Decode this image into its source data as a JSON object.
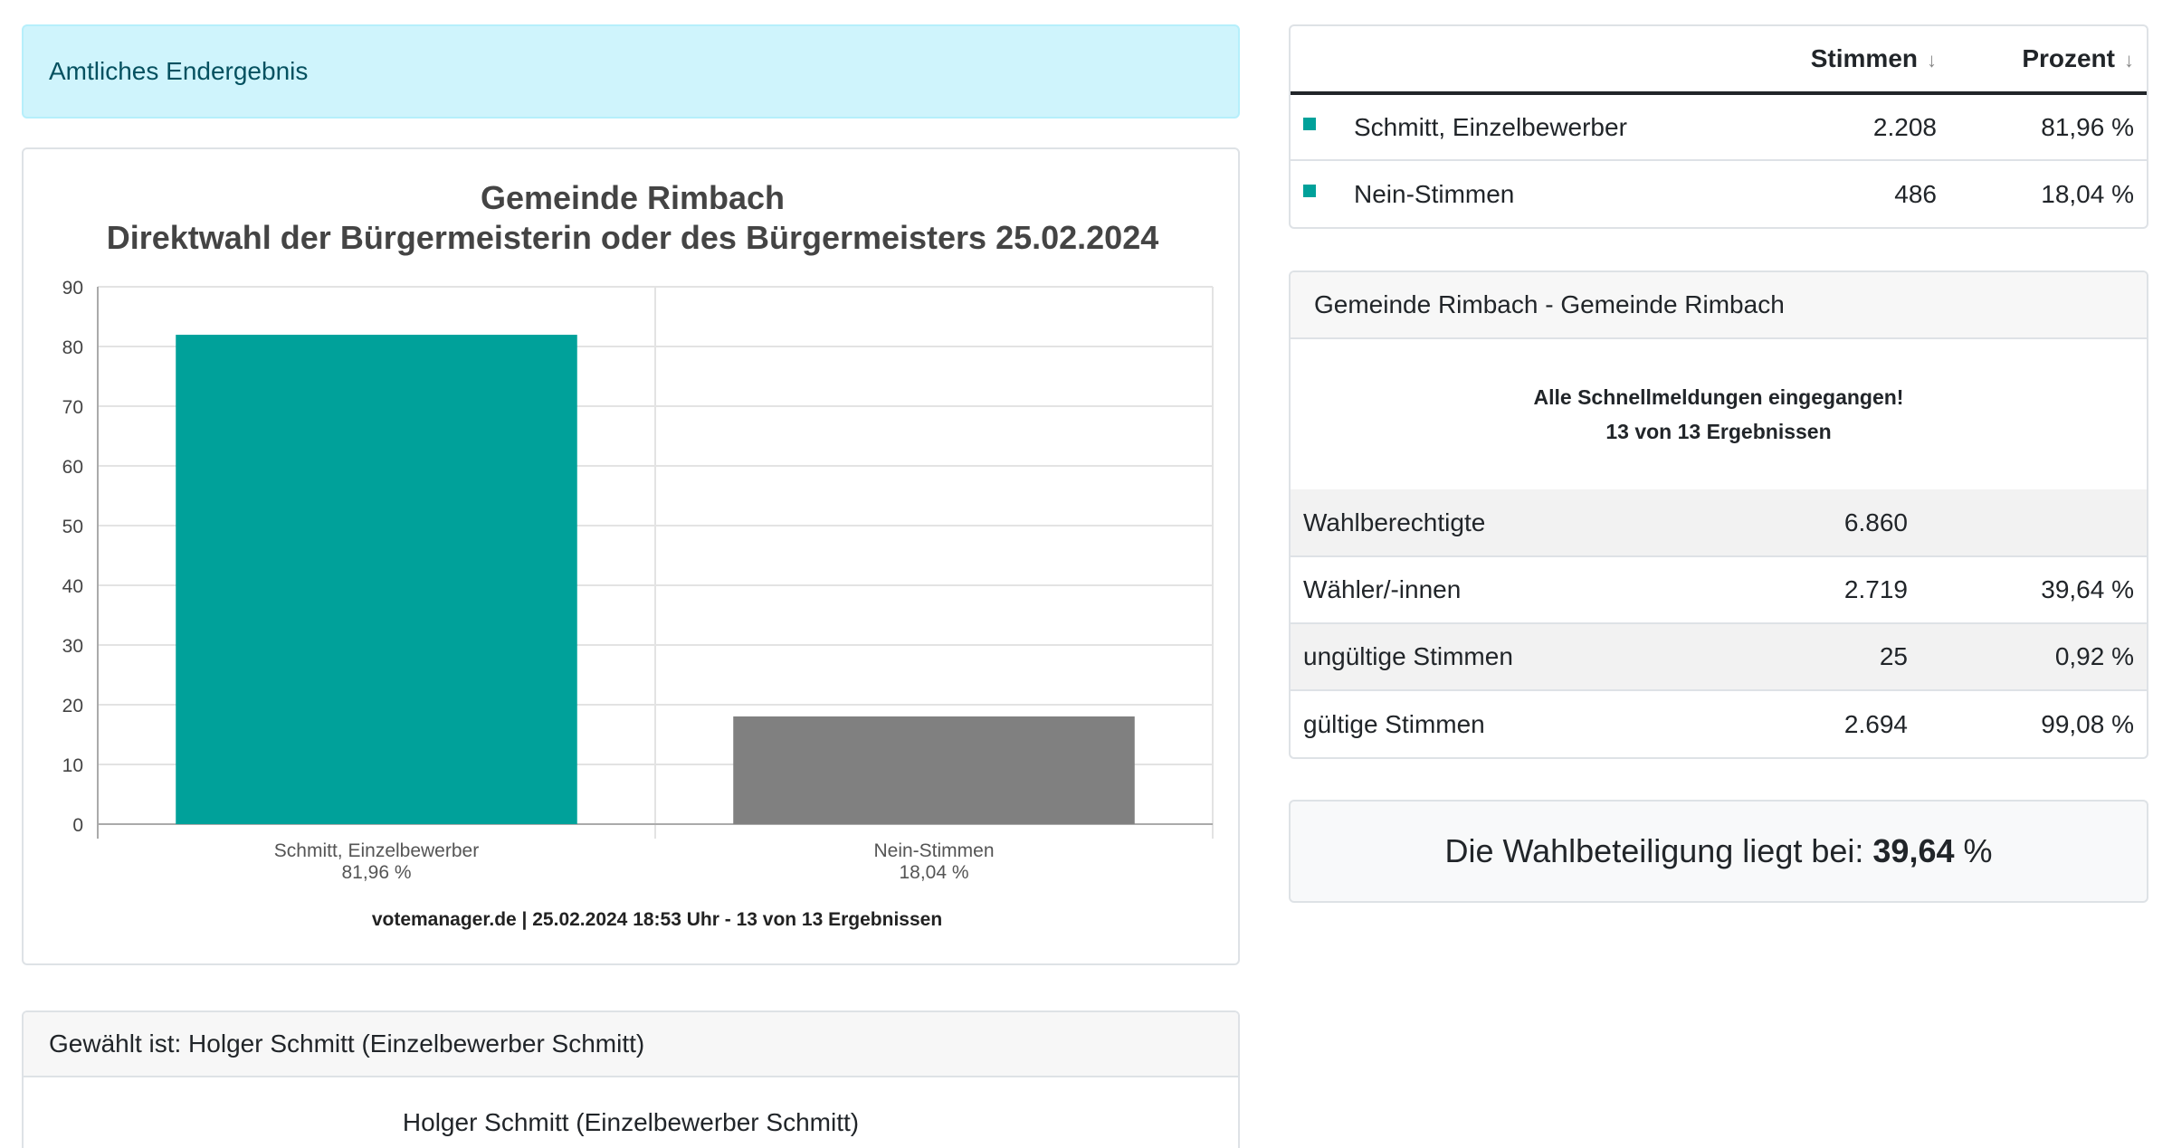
{
  "status_alert": "Amtliches Endergebnis",
  "chart_data": {
    "type": "bar",
    "title": "Gemeinde Rimbach",
    "subtitle": "Direktwahl der Bürgermeisterin oder des Bürgermeisters 25.02.2024",
    "categories": [
      "Schmitt, Einzelbewerber",
      "Nein-Stimmen"
    ],
    "category_value_labels": [
      "81,96 %",
      "18,04 %"
    ],
    "values": [
      81.96,
      18.04
    ],
    "bar_colors": [
      "#00a19a",
      "#808080"
    ],
    "ylim": [
      0,
      90
    ],
    "yticks": [
      0,
      10,
      20,
      30,
      40,
      50,
      60,
      70,
      80,
      90
    ],
    "xlabel": "",
    "ylabel": "",
    "grid": true,
    "footer": "votemanager.de | 25.02.2024 18:53 Uhr - 13 von 13 Ergebnissen"
  },
  "elected": {
    "header": "Gewählt ist: Holger Schmitt (Einzelbewerber Schmitt)",
    "name": "Holger Schmitt (Einzelbewerber Schmitt)"
  },
  "results": {
    "col_votes": "Stimmen",
    "col_percent": "Prozent",
    "sort_icon": "↓",
    "rows": [
      {
        "name": "Schmitt, Einzelbewerber",
        "votes": "2.208",
        "percent": "81,96 %",
        "color": "#00a19a"
      },
      {
        "name": "Nein-Stimmen",
        "votes": "486",
        "percent": "18,04 %",
        "color": "#00a19a"
      }
    ]
  },
  "municipality": {
    "header": "Gemeinde Rimbach - Gemeinde Rimbach",
    "notice_line1": "Alle Schnellmeldungen eingegangen!",
    "notice_line2": "13 von 13 Ergebnissen",
    "stats": [
      {
        "label": "Wahlberechtigte",
        "value": "6.860",
        "percent": ""
      },
      {
        "label": "Wähler/-innen",
        "value": "2.719",
        "percent": "39,64 %"
      },
      {
        "label": "ungültige Stimmen",
        "value": "25",
        "percent": "0,92 %"
      },
      {
        "label": "gültige Stimmen",
        "value": "2.694",
        "percent": "99,08 %"
      }
    ]
  },
  "turnout": {
    "prefix": "Die Wahlbeteiligung liegt bei:",
    "value": "39,64",
    "unit": "%"
  }
}
